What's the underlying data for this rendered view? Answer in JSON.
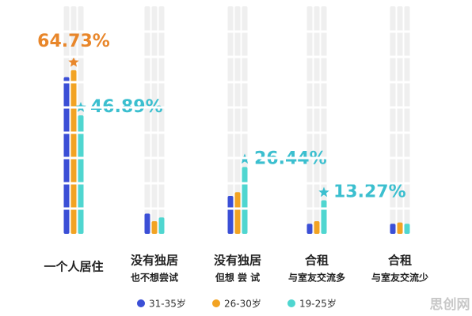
{
  "chart_data": {
    "type": "bar",
    "categories": [
      "一个人居住",
      "没有独居",
      "没有独居",
      "合租",
      "合租"
    ],
    "subcategories": [
      null,
      "也不想尝试",
      "但想 尝 试",
      "与室友交流多",
      "与室友交流少"
    ],
    "series": [
      {
        "name": "31-35岁",
        "color": "#3b4fd6",
        "values": [
          62,
          8,
          15,
          4,
          4
        ],
        "value_labels": [
          null,
          null,
          null,
          null,
          null
        ]
      },
      {
        "name": "26-30岁",
        "color": "#f2a323",
        "values": [
          64.73,
          5,
          16.5,
          5,
          4.5
        ],
        "value_labels": [
          "64.73%",
          null,
          null,
          null,
          null
        ]
      },
      {
        "name": "19-25岁",
        "color": "#4fd6d0",
        "values": [
          46.89,
          6.5,
          26.44,
          13.27,
          4
        ],
        "value_labels": [
          "46.89%",
          null,
          "26.44%",
          "13.27%",
          null
        ]
      }
    ],
    "ylim": [
      0,
      90
    ],
    "watermark": "思创网"
  }
}
